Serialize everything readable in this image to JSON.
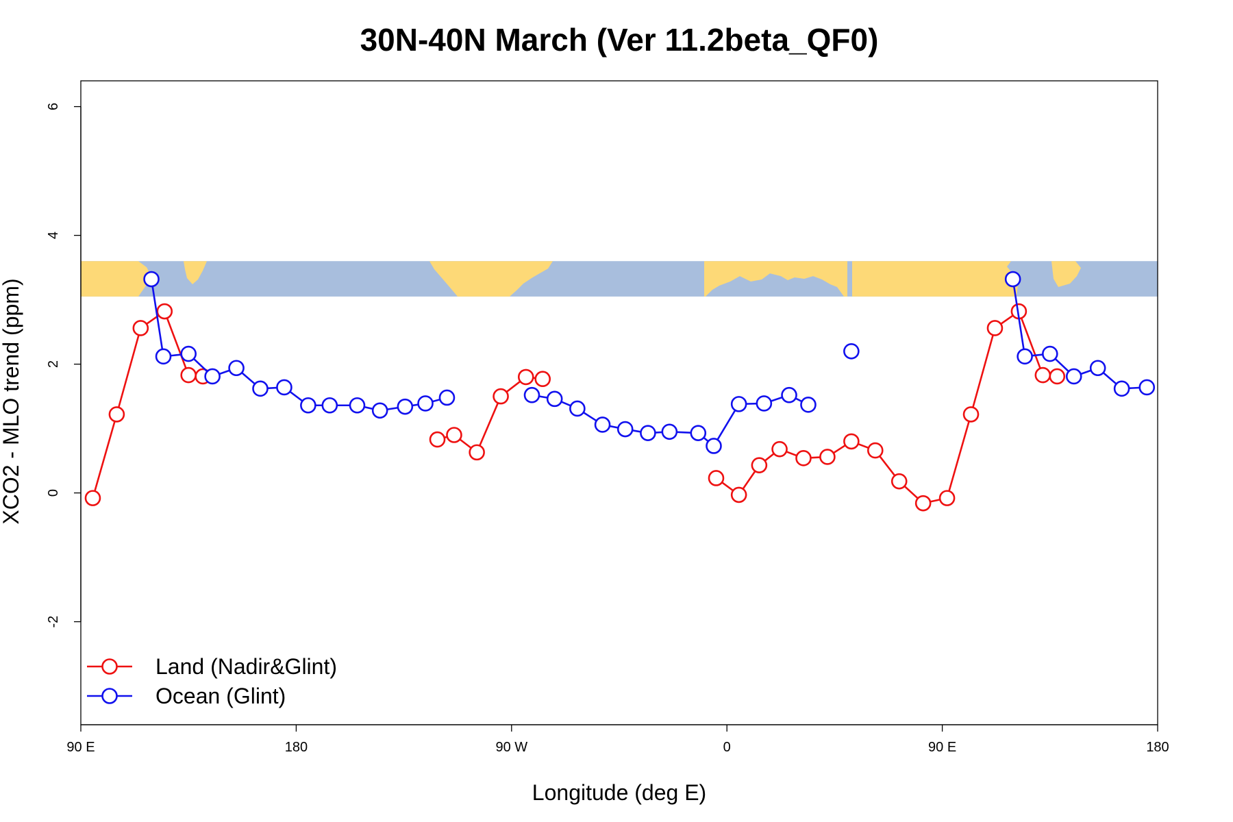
{
  "chart_data": {
    "type": "line",
    "title": "30N-40N March (Ver 11.2beta_QF0)",
    "xlabel": "Longitude (deg E)",
    "ylabel": "XCO2 - MLO trend (ppm)",
    "xlim": [
      90,
      540
    ],
    "ylim": [
      -3.6,
      6.4
    ],
    "x_ticks": [
      {
        "value": 90,
        "label": "90 E"
      },
      {
        "value": 180,
        "label": "180"
      },
      {
        "value": 270,
        "label": "90 W"
      },
      {
        "value": 360,
        "label": "0"
      },
      {
        "value": 450,
        "label": "90 E"
      },
      {
        "value": 540,
        "label": "180"
      }
    ],
    "y_ticks": [
      {
        "value": -2,
        "label": "-2"
      },
      {
        "value": 0,
        "label": "0"
      },
      {
        "value": 2,
        "label": "2"
      },
      {
        "value": 4,
        "label": "4"
      },
      {
        "value": 6,
        "label": "6"
      }
    ],
    "map_strip": {
      "y_range": [
        3.05,
        3.6
      ],
      "ocean_color": "#a8bedd",
      "land_color": "#fdd977"
    },
    "legend": {
      "position": "bottom-left"
    },
    "series": [
      {
        "name": "Land (Nadir&Glint)",
        "color": "#ee1111",
        "segments": [
          [
            [
              95,
              -0.08
            ],
            [
              105,
              1.22
            ],
            [
              115,
              2.56
            ],
            [
              125,
              2.82
            ],
            [
              135,
              1.83
            ],
            [
              141,
              1.81
            ]
          ],
          [
            [
              239,
              0.83
            ],
            [
              246,
              0.9
            ],
            [
              255.5,
              0.63
            ],
            [
              265.5,
              1.5
            ],
            [
              276,
              1.8
            ],
            [
              283,
              1.77
            ]
          ],
          [
            [
              355.5,
              0.23
            ],
            [
              365,
              -0.03
            ],
            [
              373.5,
              0.43
            ],
            [
              382,
              0.68
            ],
            [
              392,
              0.54
            ],
            [
              402,
              0.56
            ],
            [
              412,
              0.8
            ],
            [
              422,
              0.66
            ],
            [
              432,
              0.18
            ],
            [
              442,
              -0.16
            ],
            [
              452,
              -0.08
            ],
            [
              462,
              1.22
            ],
            [
              472,
              2.56
            ],
            [
              482,
              2.82
            ],
            [
              492,
              1.83
            ],
            [
              498,
              1.81
            ]
          ]
        ]
      },
      {
        "name": "Ocean (Glint)",
        "color": "#1111ee",
        "segments": [
          [
            [
              119.5,
              3.32
            ],
            [
              124.5,
              2.12
            ],
            [
              135,
              2.16
            ],
            [
              145,
              1.81
            ],
            [
              155,
              1.94
            ],
            [
              165,
              1.62
            ],
            [
              175,
              1.64
            ],
            [
              185,
              1.36
            ],
            [
              194,
              1.36
            ],
            [
              205.5,
              1.36
            ],
            [
              215,
              1.28
            ],
            [
              225.5,
              1.34
            ],
            [
              234,
              1.39
            ],
            [
              243,
              1.48
            ]
          ],
          [
            [
              278.5,
              1.52
            ],
            [
              288,
              1.46
            ],
            [
              297.5,
              1.31
            ],
            [
              308,
              1.06
            ],
            [
              317.5,
              0.99
            ],
            [
              327,
              0.93
            ],
            [
              336,
              0.95
            ],
            [
              348,
              0.93
            ],
            [
              354.5,
              0.73
            ],
            [
              365,
              1.38
            ],
            [
              375.5,
              1.39
            ],
            [
              386,
              1.52
            ],
            [
              394,
              1.37
            ]
          ],
          [
            [
              412,
              2.2
            ]
          ],
          [
            [
              479.5,
              3.32
            ],
            [
              484.5,
              2.12
            ],
            [
              495,
              2.16
            ],
            [
              505,
              1.81
            ],
            [
              515,
              1.94
            ],
            [
              525,
              1.62
            ],
            [
              535.5,
              1.64
            ]
          ]
        ]
      }
    ]
  }
}
